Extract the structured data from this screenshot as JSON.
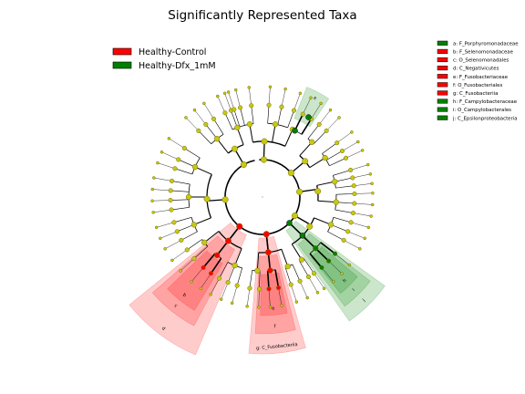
{
  "chart_data": {
    "type": "cladogram",
    "title": "Significantly Represented Taxa",
    "groups": [
      {
        "name": "Healthy-Control",
        "color": "#ff0000"
      },
      {
        "name": "Healthy-Dfx_1mM",
        "color": "#008000"
      }
    ],
    "biomarkers": [
      {
        "letter": "a",
        "taxon": "F_Porphyromonadaceae",
        "group": "Healthy-Dfx_1mM"
      },
      {
        "letter": "b",
        "taxon": "F_Selenomonadaceae",
        "group": "Healthy-Control"
      },
      {
        "letter": "c",
        "taxon": "O_Selenomonadales",
        "group": "Healthy-Control"
      },
      {
        "letter": "d",
        "taxon": "C_Negativicutes",
        "group": "Healthy-Control"
      },
      {
        "letter": "e",
        "taxon": "F_Fusobacteriaceae",
        "group": "Healthy-Control"
      },
      {
        "letter": "f",
        "taxon": "O_Fusobacteriales",
        "group": "Healthy-Control"
      },
      {
        "letter": "g",
        "taxon": "C_Fusobacteriia",
        "group": "Healthy-Control"
      },
      {
        "letter": "h",
        "taxon": "F_Campylobacteraceae",
        "group": "Healthy-Dfx_1mM"
      },
      {
        "letter": "i",
        "taxon": "O_Campylobacterales",
        "group": "Healthy-Dfx_1mM"
      },
      {
        "letter": "j",
        "taxon": "C_Epsilonproteobacteria",
        "group": "Healthy-Dfx_1mM"
      }
    ],
    "legend": [
      "a: F_Porphyromonadaceae",
      "b: F_Selenomonadaceae",
      "c: O_Selenomonadales",
      "d: C_Negativicutes",
      "e: F_Fusobacteriaceae",
      "f: O_Fusobacteriales",
      "g: C_Fusobacteriia",
      "h: F_Campylobacteraceae",
      "i: O_Campylobacterales",
      "j: C_Epsilonproteobacteria"
    ],
    "sector_labels": [
      "a",
      "b",
      "c",
      "d",
      "e",
      "f",
      "g: C_Fusobacteriia",
      "h",
      "i",
      "j"
    ],
    "colors": {
      "node_default": "#c8c814",
      "node_edge": "#6e6e00",
      "control": "#ff0000",
      "dfx": "#008000"
    }
  }
}
